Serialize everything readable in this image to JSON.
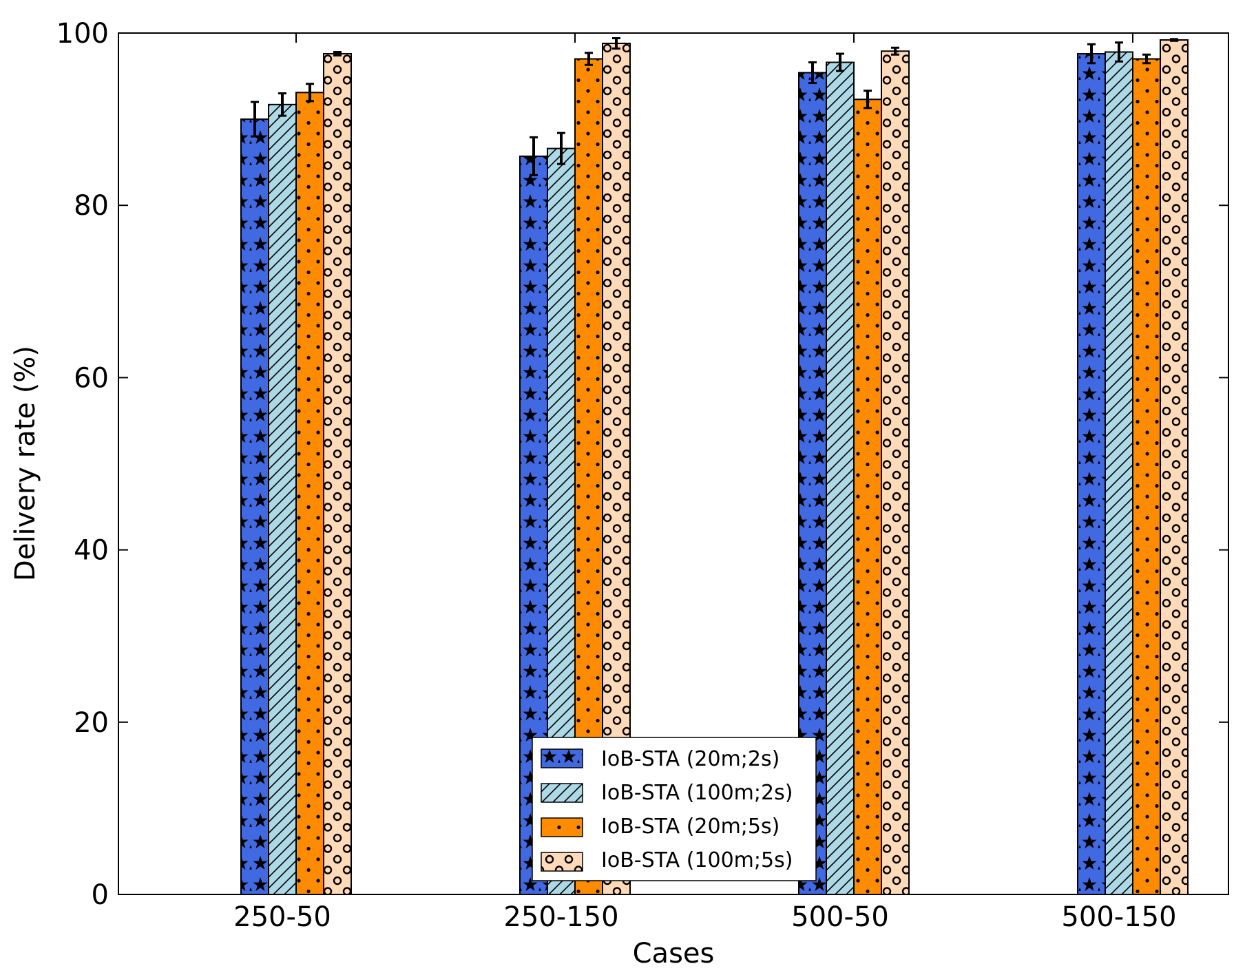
{
  "chart_data": {
    "type": "bar",
    "title": "",
    "xlabel": "Cases",
    "ylabel": "Delivery rate (%)",
    "ylim": [
      0,
      100
    ],
    "yticks": [
      0,
      20,
      40,
      60,
      80,
      100
    ],
    "grid": false,
    "legend_position": "bottom-center",
    "categories": [
      "250-50",
      "250-150",
      "500-50",
      "500-150"
    ],
    "series": [
      {
        "name": "IoB-STA (20m;2s)",
        "color": "#4169E1",
        "pattern": "stars",
        "values": [
          90.0,
          85.7,
          95.4,
          97.6
        ],
        "errors": [
          2.0,
          2.2,
          1.2,
          1.1
        ]
      },
      {
        "name": "IoB-STA (100m;2s)",
        "color": "#ADD8E6",
        "pattern": "hatch",
        "values": [
          91.7,
          86.6,
          96.6,
          97.8
        ],
        "errors": [
          1.3,
          1.8,
          1.0,
          1.1
        ]
      },
      {
        "name": "IoB-STA (20m;5s)",
        "color": "#FF8C00",
        "pattern": "dots",
        "values": [
          93.1,
          97.0,
          92.3,
          97.0
        ],
        "errors": [
          1.0,
          0.7,
          1.0,
          0.5
        ]
      },
      {
        "name": "IoB-STA (100m;5s)",
        "color": "#FFDAB9",
        "pattern": "circles",
        "values": [
          97.6,
          98.8,
          97.9,
          99.2
        ],
        "errors": [
          0.2,
          0.6,
          0.4,
          0.1
        ]
      }
    ]
  }
}
